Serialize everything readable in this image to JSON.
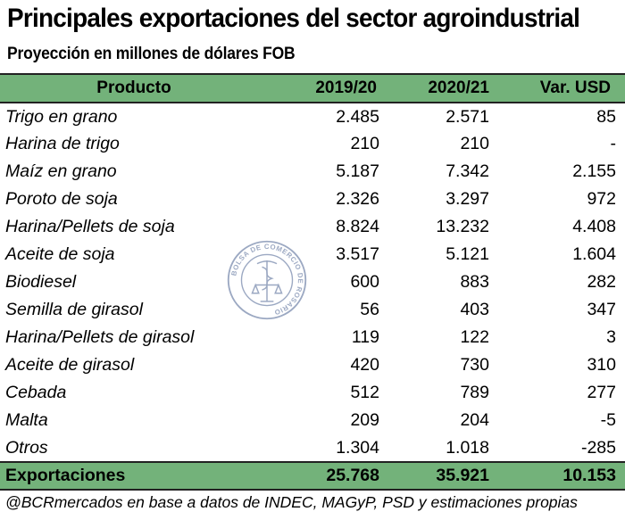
{
  "title": "Principales exportaciones del sector agroindustrial",
  "subtitle": "Proyección en millones de dólares FOB",
  "table": {
    "headers": [
      "Producto",
      "2019/20",
      "2020/21",
      "Var. USD"
    ],
    "rows": [
      [
        "Trigo en grano",
        "2.485",
        "2.571",
        "85"
      ],
      [
        "Harina de trigo",
        "210",
        "210",
        "-"
      ],
      [
        "Maíz en grano",
        "5.187",
        "7.342",
        "2.155"
      ],
      [
        "Poroto de soja",
        "2.326",
        "3.297",
        "972"
      ],
      [
        "Harina/Pellets de soja",
        "8.824",
        "13.232",
        "4.408"
      ],
      [
        "Aceite de soja",
        "3.517",
        "5.121",
        "1.604"
      ],
      [
        "Biodiesel",
        "600",
        "883",
        "282"
      ],
      [
        "Semilla de girasol",
        "56",
        "403",
        "347"
      ],
      [
        "Harina/Pellets de girasol",
        "119",
        "122",
        "3"
      ],
      [
        "Aceite de girasol",
        "420",
        "730",
        "310"
      ],
      [
        "Cebada",
        "512",
        "789",
        "277"
      ],
      [
        "Malta",
        "209",
        "204",
        "-5"
      ],
      [
        "Otros",
        "1.304",
        "1.018",
        "-285"
      ]
    ],
    "total": [
      "Exportaciones",
      "25.768",
      "35.921",
      "10.153"
    ]
  },
  "source": "@BCRmercados en base a datos de INDEC, MAGyP, PSD y estimaciones propias",
  "watermark_text": "BOLSA DE COMERCIO DE ROSARIO",
  "colors": {
    "header_green": "#73b27a",
    "seal_blue": "#5a6f9a"
  }
}
